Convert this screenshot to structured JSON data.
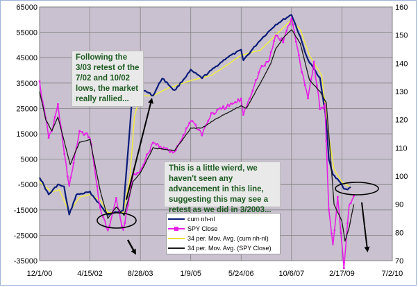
{
  "chart_data": {
    "type": "line",
    "title": "",
    "x_ticks": [
      "12/1/00",
      "4/15/02",
      "8/28/03",
      "1/9/05",
      "5/24/06",
      "10/6/07",
      "2/17/09",
      "7/2/10"
    ],
    "y_left": {
      "ticks": [
        "65000",
        "55000",
        "45000",
        "35000",
        "25000",
        "15000",
        "5000",
        "-5000",
        "-15000",
        "-25000",
        "-35000"
      ],
      "range": [
        -35000,
        65000
      ]
    },
    "y_right": {
      "ticks": [
        "160",
        "150",
        "140",
        "130",
        "120",
        "110",
        "100",
        "90",
        "80",
        "70"
      ],
      "range": [
        70,
        160
      ]
    },
    "grid": true,
    "legend_placement": "bottom-center",
    "series": [
      {
        "name": "cum nh-nl",
        "axis": "left",
        "color": "#0b1c78",
        "x": [
          "12/1/00",
          "3/1/01",
          "6/1/01",
          "8/1/01",
          "9/21/01",
          "12/1/01",
          "4/15/02",
          "7/24/02",
          "10/10/02",
          "3/11/03",
          "5/1/03",
          "6/15/03",
          "8/28/03",
          "1/1/04",
          "4/1/04",
          "8/1/04",
          "1/9/05",
          "5/1/05",
          "9/1/05",
          "1/1/06",
          "5/24/06",
          "6/15/06",
          "12/1/06",
          "5/1/07",
          "10/6/07",
          "1/1/08",
          "3/17/08",
          "7/15/08",
          "9/15/08",
          "10/10/08",
          "11/20/08",
          "2/17/09",
          "3/9/09",
          "4/15/09",
          "5/15/09"
        ],
        "y": [
          -2000,
          -9000,
          -5000,
          -6000,
          -17000,
          -9000,
          -8000,
          -13000,
          -17000,
          -15000,
          10000,
          33000,
          33000,
          30000,
          37000,
          32000,
          40000,
          37000,
          41000,
          45000,
          48000,
          44000,
          52000,
          58000,
          62000,
          53000,
          44000,
          37000,
          20000,
          5000,
          -1000,
          -5000,
          -7000,
          -7000,
          -6000
        ]
      },
      {
        "name": "SPY Close",
        "axis": "right",
        "color": "#e61ee6",
        "x": [
          "12/1/00",
          "3/1/01",
          "4/1/01",
          "6/1/01",
          "9/21/01",
          "1/1/02",
          "4/15/02",
          "7/24/02",
          "10/10/02",
          "1/1/03",
          "3/11/03",
          "6/15/03",
          "8/28/03",
          "1/1/04",
          "8/1/04",
          "1/9/05",
          "5/1/05",
          "8/1/05",
          "5/24/06",
          "6/15/06",
          "12/1/06",
          "2/27/07",
          "5/1/07",
          "7/15/07",
          "10/6/07",
          "1/1/08",
          "3/17/08",
          "5/15/08",
          "7/15/08",
          "9/1/08",
          "10/10/08",
          "11/20/08",
          "1/6/09",
          "3/9/09",
          "5/1/09",
          "6/15/09"
        ],
        "y": [
          133,
          114,
          116,
          125,
          96,
          116,
          114,
          89,
          80,
          92,
          80,
          100,
          102,
          112,
          108,
          120,
          115,
          122,
          127,
          122,
          138,
          141,
          150,
          148,
          156,
          140,
          128,
          140,
          124,
          125,
          88,
          75,
          93,
          68,
          90,
          93
        ]
      },
      {
        "name": "34 per. Mov. Avg. (cum nh-nl)",
        "axis": "left",
        "color": "#f2f03a",
        "x": [
          "12/1/00",
          "4/1/01",
          "6/15/01",
          "9/21/01",
          "1/1/02",
          "4/15/02",
          "7/24/02",
          "10/10/02",
          "3/11/03",
          "5/15/03",
          "7/1/03",
          "8/28/03",
          "1/1/04",
          "6/1/04",
          "1/9/05",
          "8/1/05",
          "1/1/06",
          "5/24/06",
          "12/1/06",
          "6/1/07",
          "10/6/07",
          "1/1/08",
          "4/1/08",
          "8/1/08",
          "10/10/08",
          "12/1/08",
          "2/17/09",
          "5/15/09"
        ],
        "y": [
          -4000,
          -8000,
          -7000,
          -16000,
          -10000,
          -9000,
          -11000,
          -16000,
          -16000,
          -3000,
          22000,
          30000,
          30000,
          33000,
          36000,
          38000,
          42000,
          46000,
          48000,
          55000,
          60000,
          56000,
          46000,
          38000,
          14000,
          1000,
          -4000,
          -6000
        ]
      },
      {
        "name": "34 per. Mov. Avg. (SPY Close)",
        "axis": "right",
        "color": "#1a1a1a",
        "x": [
          "12/1/00",
          "2/1/01",
          "4/1/01",
          "6/1/01",
          "10/1/01",
          "1/1/02",
          "4/15/02",
          "7/24/02",
          "10/10/02",
          "1/1/03",
          "3/20/03",
          "6/15/03",
          "8/28/03",
          "1/1/04",
          "8/1/04",
          "1/9/05",
          "5/1/05",
          "9/1/05",
          "5/24/06",
          "7/15/06",
          "12/1/06",
          "3/15/07",
          "5/1/07",
          "7/15/07",
          "10/6/07",
          "1/1/08",
          "4/1/08",
          "7/15/08",
          "9/15/08",
          "10/25/08",
          "12/1/08",
          "2/17/09",
          "3/20/09",
          "5/1/09",
          "6/15/09"
        ],
        "y": [
          130,
          120,
          116,
          121,
          104,
          112,
          113,
          95,
          85,
          89,
          86,
          98,
          101,
          110,
          109,
          117,
          117,
          120,
          125,
          124,
          133,
          140,
          145,
          149,
          152,
          147,
          134,
          130,
          126,
          108,
          90,
          84,
          77,
          82,
          90
        ]
      }
    ],
    "annotations": [
      {
        "text": "Following the 3/03 retest of the 7/02 and 10/02 lows, the market really rallied..."
      },
      {
        "text": "This is a little wierd, we haven't seen any advancement in this line, suggesting this may see a retest as we did in 3/2003..."
      }
    ]
  }
}
